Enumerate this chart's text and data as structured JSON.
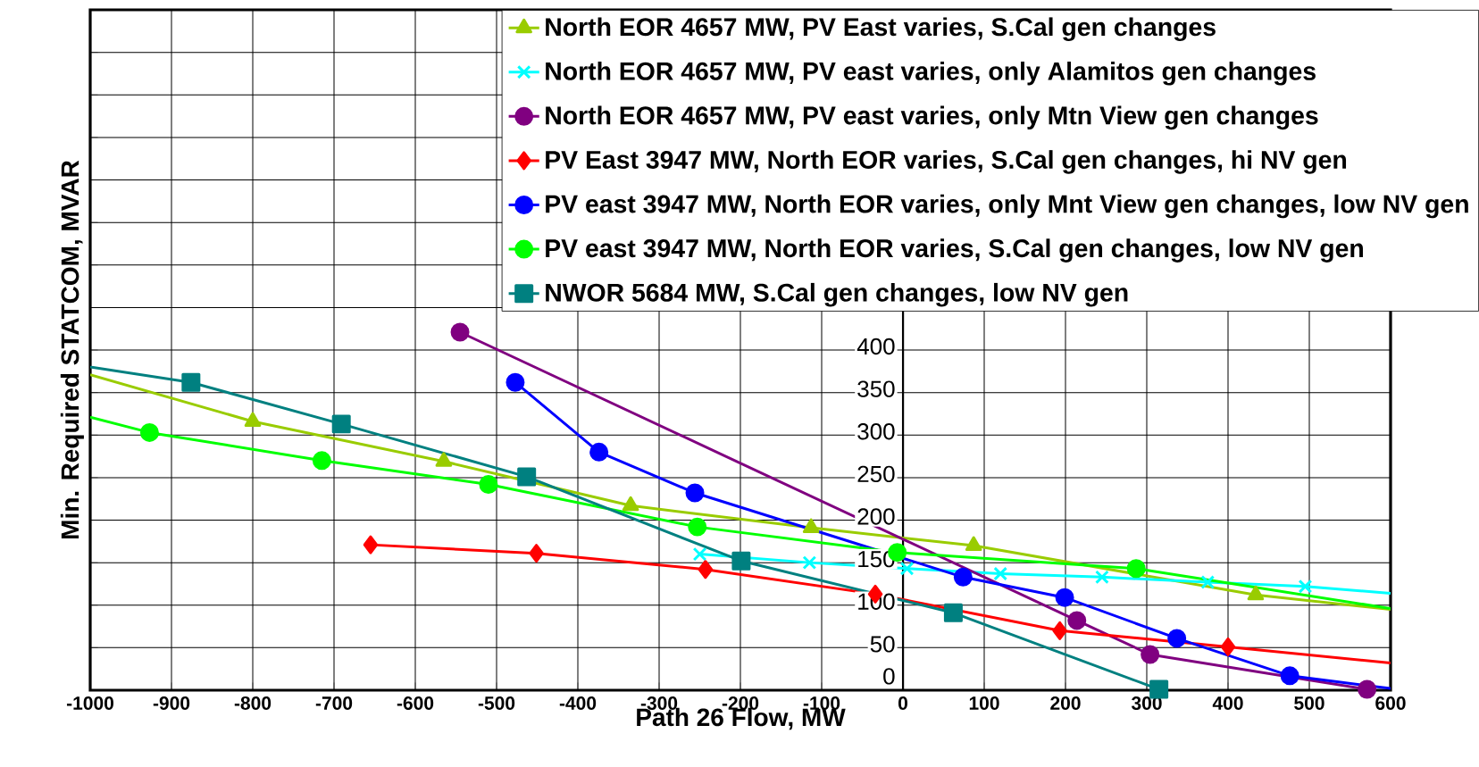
{
  "chart_data": {
    "type": "line",
    "xlabel": "Path 26 Flow, MW",
    "ylabel": "Min. Required STATCOM, MVAR",
    "xlim": [
      -1000,
      600
    ],
    "ylim": [
      0,
      800
    ],
    "xticks": [
      -1000,
      -900,
      -800,
      -700,
      -600,
      -500,
      -400,
      -300,
      -200,
      -100,
      0,
      100,
      200,
      300,
      400,
      500,
      600
    ],
    "yticks": [
      0,
      50,
      100,
      150,
      200,
      250,
      300,
      350,
      400,
      {
        "value": 450,
        "label": null
      },
      {
        "value": 500,
        "label": null
      },
      {
        "value": 550,
        "label": null
      },
      {
        "value": 600,
        "label": null
      },
      {
        "value": 650,
        "label": null
      },
      {
        "value": 700,
        "label": null
      },
      {
        "value": 750,
        "label": null
      },
      {
        "value": 800,
        "label": null
      }
    ],
    "grid": true,
    "legend": "top right",
    "series": [
      {
        "name": "North EOR 4657 MW, PV East varies, S.Cal gen changes",
        "color": "#99cc00",
        "marker": "triangle",
        "x": [
          -800,
          -565,
          -335,
          -113,
          87,
          434
        ],
        "values": [
          316,
          269,
          217,
          191,
          170,
          112
        ]
      },
      {
        "name": "North EOR 4657 MW, PV east varies, only Alamitos gen changes",
        "color": "#00ffff",
        "marker": "cross",
        "x": [
          -250,
          -115,
          5,
          120,
          245,
          375,
          495
        ],
        "values": [
          160,
          150,
          143,
          137,
          133,
          127,
          122
        ]
      },
      {
        "name": "North EOR 4657 MW, PV east varies, only Mtn View gen changes",
        "color": "#800080",
        "marker": "circle",
        "x": [
          -545,
          214,
          304,
          571
        ],
        "values": [
          421,
          82,
          42,
          1
        ]
      },
      {
        "name": "PV East 3947 MW, North EOR varies, S.Cal gen changes, hi NV gen",
        "color": "#ff0000",
        "marker": "diamond",
        "x": [
          -655,
          -451,
          -243,
          -34,
          193,
          400
        ],
        "values": [
          171,
          161,
          142,
          113,
          70,
          51
        ]
      },
      {
        "name": "PV east 3947 MW, North EOR varies, only Mnt View gen changes, low NV gen",
        "color": "#0000ff",
        "marker": "circle",
        "x": [
          -477,
          -374,
          -256,
          74,
          199,
          337,
          476
        ],
        "values": [
          362,
          280,
          232,
          133,
          109,
          61,
          17
        ]
      },
      {
        "name": "PV east 3947 MW, North EOR varies, S.Cal gen changes, low NV gen",
        "color": "#00ff00",
        "marker": "circle",
        "x": [
          -927,
          -715,
          -510,
          -253,
          -7,
          287
        ],
        "values": [
          303,
          270,
          242,
          192,
          162,
          143
        ]
      },
      {
        "name": "NWOR 5684 MW, S.Cal gen changes, low NV gen",
        "color": "#008080",
        "marker": "square",
        "x": [
          -876,
          -691,
          -463,
          -199,
          62,
          315
        ],
        "values": [
          362,
          313,
          251,
          152,
          91,
          1
        ]
      },
      {
        "color": "#99cc00",
        "marker": "none",
        "x": [
          -1000,
          -800
        ],
        "values": [
          371,
          316
        ]
      },
      {
        "color": "#99cc00",
        "marker": "none",
        "x": [
          434,
          600
        ],
        "values": [
          112,
          95
        ]
      },
      {
        "color": "#00ffff",
        "marker": "none",
        "x": [
          495,
          600
        ],
        "values": [
          122,
          114
        ]
      },
      {
        "color": "#ff0000",
        "marker": "none",
        "x": [
          400,
          600
        ],
        "values": [
          51,
          32
        ]
      },
      {
        "color": "#0000ff",
        "marker": "none",
        "x": [
          476,
          600
        ],
        "values": [
          17,
          2
        ]
      },
      {
        "color": "#00ff00",
        "marker": "none",
        "x": [
          -1000,
          -927
        ],
        "values": [
          321,
          303
        ]
      },
      {
        "color": "#00ff00",
        "marker": "none",
        "x": [
          287,
          600
        ],
        "values": [
          143,
          96
        ]
      },
      {
        "color": "#008080",
        "marker": "none",
        "x": [
          -1000,
          -876
        ],
        "values": [
          380,
          362
        ]
      }
    ]
  }
}
